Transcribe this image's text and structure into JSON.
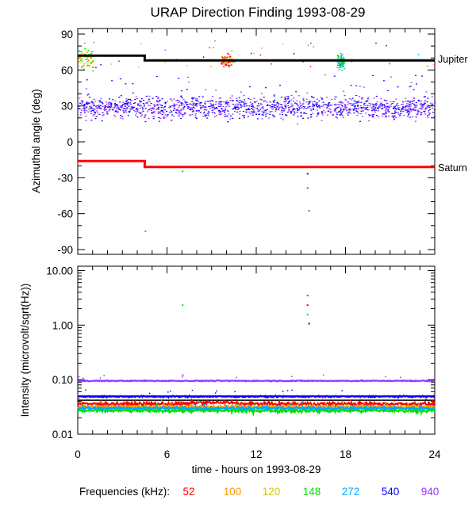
{
  "chart_data": [
    {
      "type": "scatter",
      "title": "URAP Direction Finding  1993-08-29",
      "ylabel": "Azimuthal angle (deg)",
      "xlim": [
        0,
        24
      ],
      "ylim": [
        -90,
        90
      ],
      "yticks": [
        -90,
        -60,
        -30,
        0,
        30,
        60,
        90
      ],
      "yticklabels": [
        "-90",
        "-60",
        "-30",
        "0",
        "30",
        "60",
        "90"
      ],
      "reference_lines": [
        {
          "name": "Jupiter",
          "color": "#000000",
          "x": [
            0,
            4.5,
            4.5,
            24
          ],
          "y": [
            72,
            72,
            68,
            68
          ]
        },
        {
          "name": "Saturn",
          "color": "#ff0000",
          "x": [
            0,
            4.5,
            4.5,
            24
          ],
          "y": [
            -16,
            -16,
            -21,
            -21
          ]
        }
      ],
      "scatter_groups": [
        {
          "note": "main band",
          "x_range": [
            0,
            24
          ],
          "y_center": 29,
          "y_spread": 9,
          "colors": [
            "#9933ff",
            "#0000ff"
          ]
        },
        {
          "note": "upper cluster",
          "x_range": [
            0,
            1
          ],
          "y_center": 70,
          "y_spread": 9,
          "colors": [
            "#00e000",
            "#ff9900",
            "#cccc00"
          ]
        },
        {
          "note": "upper cluster",
          "x_range": [
            9.6,
            10.4
          ],
          "y_center": 68,
          "y_spread": 5,
          "colors": [
            "#ff0000",
            "#ff9900"
          ]
        },
        {
          "note": "upper cluster",
          "x_range": [
            17.4,
            17.9
          ],
          "y_center": 67,
          "y_spread": 6,
          "colors": [
            "#00e000",
            "#00aaff"
          ]
        }
      ],
      "isolated_points": [
        {
          "x": 15.4,
          "y": -26,
          "color": "#0000ff"
        },
        {
          "x": 15.4,
          "y": -38,
          "color": "#9933ff"
        },
        {
          "x": 15.5,
          "y": -57,
          "color": "#9933ff"
        },
        {
          "x": 7.0,
          "y": -24,
          "color": "#00e000"
        },
        {
          "x": 4.5,
          "y": -74,
          "color": "#00e000"
        },
        {
          "x": 20.0,
          "y": 83,
          "color": "#00e000"
        }
      ]
    },
    {
      "type": "line",
      "xlabel": "time - hours on 1993-08-29",
      "ylabel": "Intensity (microvolt/sqrt(Hz))",
      "xlim": [
        0,
        24
      ],
      "xticks": [
        0,
        6,
        12,
        18,
        24
      ],
      "xticklabels": [
        "0",
        "6",
        "12",
        "18",
        "24"
      ],
      "yscale": "log",
      "ylim": [
        0.01,
        12
      ],
      "yticks": [
        0.01,
        0.1,
        1.0,
        10.0
      ],
      "yticklabels": [
        "0.01",
        "0.10",
        "1.00",
        "10.00"
      ],
      "series": [
        {
          "name": "52",
          "color": "#ff0000",
          "level": 0.036,
          "noise": 0.035
        },
        {
          "name": "100",
          "color": "#ff9900",
          "level": 0.032,
          "noise": 0.03
        },
        {
          "name": "120",
          "color": "#cccc00",
          "level": 0.03,
          "noise": 0.03
        },
        {
          "name": "148",
          "color": "#00e000",
          "level": 0.027,
          "noise": 0.035
        },
        {
          "name": "272",
          "color": "#00aaff",
          "level": 0.03,
          "noise": 0.03
        },
        {
          "name": "540",
          "color": "#0000ff",
          "level": 0.049,
          "noise": 0.015
        },
        {
          "name": "940",
          "color": "#9933ff",
          "level": 0.095,
          "noise": 0.01
        }
      ],
      "reference_lines": [
        {
          "color": "#000000",
          "level": 0.05
        },
        {
          "color": "#000000",
          "level": 0.042
        }
      ],
      "isolated_points": [
        {
          "x": 15.4,
          "y": 3.6,
          "color": "#9933ff"
        },
        {
          "x": 15.4,
          "y": 2.4,
          "color": "#ff0000"
        },
        {
          "x": 15.4,
          "y": 1.6,
          "color": "#00aaff"
        },
        {
          "x": 15.5,
          "y": 1.1,
          "color": "#0000ff"
        },
        {
          "x": 7.0,
          "y": 2.4,
          "color": "#00e000"
        }
      ]
    }
  ],
  "legend": {
    "label": "Frequencies (kHz):",
    "items": [
      {
        "text": "52",
        "color": "#ff0000"
      },
      {
        "text": "100",
        "color": "#ff9900"
      },
      {
        "text": "120",
        "color": "#cccc00"
      },
      {
        "text": "148",
        "color": "#00e000"
      },
      {
        "text": "272",
        "color": "#00aaff"
      },
      {
        "text": "540",
        "color": "#0000ff"
      },
      {
        "text": "940",
        "color": "#9933ff"
      }
    ]
  }
}
